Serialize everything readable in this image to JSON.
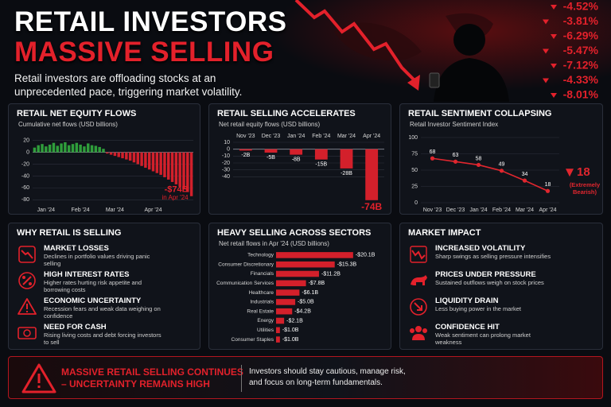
{
  "header": {
    "title_line1": "RETAIL INVESTORS",
    "title_line2": "MASSIVE SELLING",
    "subtitle": "Retail investors are offloading stocks at an unprecedented pace, triggering market volatility.",
    "tickers": [
      "-4.52%",
      "-3.81%",
      "-6.29%",
      "-5.47%",
      "-7.12%",
      "-4.33%",
      "-8.01%"
    ]
  },
  "chart_data": [
    {
      "type": "bar",
      "title": "RETAIL NET EQUITY FLOWS",
      "subtitle": "Cumulative net flows (USD billions)",
      "categories": [
        null,
        null,
        null,
        "Jan '24",
        null,
        null,
        null,
        null,
        null,
        null,
        null,
        null,
        "Feb '24",
        null,
        null,
        null,
        null,
        null,
        null,
        null,
        null,
        "Mar '24",
        null,
        null,
        null,
        null,
        null,
        null,
        null,
        null,
        null,
        "Apr '24",
        null,
        null,
        null,
        null,
        null,
        null,
        null,
        null,
        null,
        null
      ],
      "values": [
        8,
        12,
        14,
        10,
        13,
        16,
        11,
        15,
        17,
        12,
        14,
        16,
        13,
        10,
        15,
        12,
        11,
        9,
        6,
        -2,
        -4,
        -6,
        -8,
        -10,
        -12,
        -14,
        -17,
        -20,
        -23,
        -26,
        -29,
        -32,
        -35,
        -38,
        -42,
        -46,
        -50,
        -54,
        -58,
        -62,
        -67,
        -74
      ],
      "positive_color": "#2f9e3b",
      "negative_color": "#d3202b",
      "ylim": [
        -85,
        25
      ],
      "yticks": [
        20,
        0,
        -20,
        -40,
        -60,
        -80
      ],
      "grid": true,
      "annotation": "-$74B",
      "annotation_note": "in Apr '24"
    },
    {
      "type": "bar",
      "title": "RETAIL SELLING ACCELERATES",
      "subtitle": "Net retail equity flows (USD billions)",
      "categories": [
        "Nov '23",
        "Dec '23",
        "Jan '24",
        "Feb '24",
        "Mar '24",
        "Apr '24"
      ],
      "values": [
        -2,
        -5,
        -8,
        -15,
        -28,
        -74
      ],
      "value_labels": [
        "-2B",
        "-5B",
        "-8B",
        "-15B",
        "-28B",
        "-74B"
      ],
      "color": "#d3202b",
      "ylim": [
        -80,
        10
      ],
      "yticks": [
        10,
        0,
        -10,
        -20,
        -30,
        -40
      ],
      "grid": true,
      "category_axis": "top"
    },
    {
      "type": "line",
      "title": "RETAIL SENTIMENT COLLAPSING",
      "subtitle": "Retail Investor Sentiment Index",
      "categories": [
        "Nov '23",
        "Dec '23",
        "Jan '24",
        "Feb '24",
        "Mar '24",
        "Apr '24"
      ],
      "values": [
        68,
        63,
        58,
        49,
        34,
        18
      ],
      "color": "#e0262e",
      "ylim": [
        0,
        100
      ],
      "yticks": [
        0,
        25,
        50,
        75,
        100
      ],
      "grid": true,
      "annotation": "(Extremely Bearish)"
    },
    {
      "type": "bar",
      "orientation": "horizontal",
      "title": "HEAVY SELLING ACROSS SECTORS",
      "subtitle": "Net retail flows in Apr '24 (USD billions)",
      "categories": [
        "Technology",
        "Consumer Discretionary",
        "Financials",
        "Communication Services",
        "Healthcare",
        "Industrials",
        "Real Estate",
        "Energy",
        "Utilities",
        "Consumer Staples"
      ],
      "values": [
        -20.1,
        -15.3,
        -11.2,
        -7.8,
        -6.1,
        -5.0,
        -4.2,
        -2.1,
        -1.0,
        -1.0
      ],
      "value_labels": [
        "-$20.1B",
        "-$15.3B",
        "-$11.2B",
        "-$7.8B",
        "-$6.1B",
        "-$5.0B",
        "-$4.2B",
        "-$2.1B",
        "-$1.0B",
        "-$1.0B"
      ],
      "color": "#d3202b",
      "xlim": [
        0,
        -22
      ]
    }
  ],
  "why": {
    "title": "WHY RETAIL IS SELLING",
    "items": [
      {
        "title": "MARKET LOSSES",
        "text": "Declines in portfolio values driving panic selling"
      },
      {
        "title": "HIGH INTEREST RATES",
        "text": "Higher rates hurting risk appetite and borrowing costs"
      },
      {
        "title": "ECONOMIC UNCERTAINTY",
        "text": "Recession fears and weak data weighing on confidence"
      },
      {
        "title": "NEED FOR CASH",
        "text": "Rising living costs and debt forcing investors to sell"
      }
    ]
  },
  "impact": {
    "title": "MARKET IMPACT",
    "items": [
      {
        "title": "INCREASED VOLATILITY",
        "text": "Sharp swings as selling pressure intensifies"
      },
      {
        "title": "PRICES UNDER PRESSURE",
        "text": "Sustained outflows weigh on stock prices"
      },
      {
        "title": "LIQUIDITY DRAIN",
        "text": "Less buying power in the market"
      },
      {
        "title": "CONFIDENCE HIT",
        "text": "Weak sentiment can prolong market weakness"
      }
    ]
  },
  "footer": {
    "headline": "MASSIVE RETAIL SELLING CONTINUES – UNCERTAINTY REMAINS HIGH",
    "text": "Investors should stay cautious, manage risk, and focus on long-term fundamentals."
  }
}
